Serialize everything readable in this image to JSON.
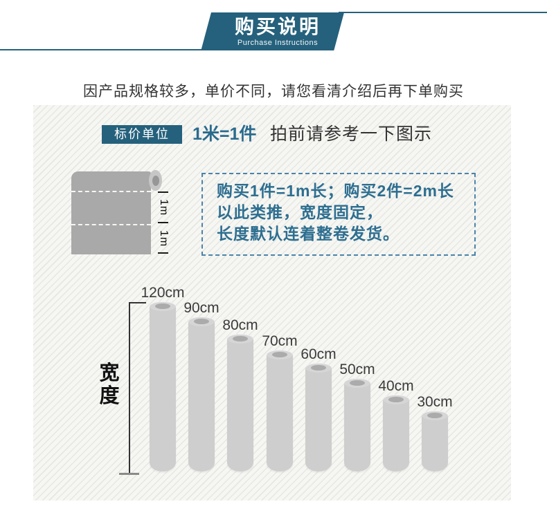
{
  "colors": {
    "accent_teal": "#25617c",
    "text_teal": "#2d6e90",
    "note_border": "#4a84a9",
    "roll_gray": "#a9a9a9",
    "cylinder_gray": "#cecece",
    "panel_bg": "#f6f6f3"
  },
  "header": {
    "banner_title": "购买说明",
    "banner_subtitle": "Purchase Instructions"
  },
  "intro": {
    "text": "因产品规格较多，单价不同，请您看清介绍后再下单购买"
  },
  "price_unit": {
    "label": "标价单位",
    "equation": "1米=1件",
    "hint": "拍前请参考一下图示"
  },
  "roll_diagram": {
    "segments": [
      "1m",
      "1m"
    ]
  },
  "note_box": {
    "lines": [
      "购买1件=1m长；购买2件=2m长",
      "以此类推，宽度固定，",
      "长度默认连着整卷发货。"
    ]
  },
  "chart_data": {
    "type": "bar",
    "title": "宽度 (available roll widths)",
    "categories": [
      "120cm",
      "90cm",
      "80cm",
      "70cm",
      "60cm",
      "50cm",
      "40cm",
      "30cm"
    ],
    "values": [
      120,
      90,
      80,
      70,
      60,
      50,
      40,
      30
    ],
    "xlabel": "",
    "ylabel": "宽度",
    "legend": "none",
    "grid": "off"
  }
}
